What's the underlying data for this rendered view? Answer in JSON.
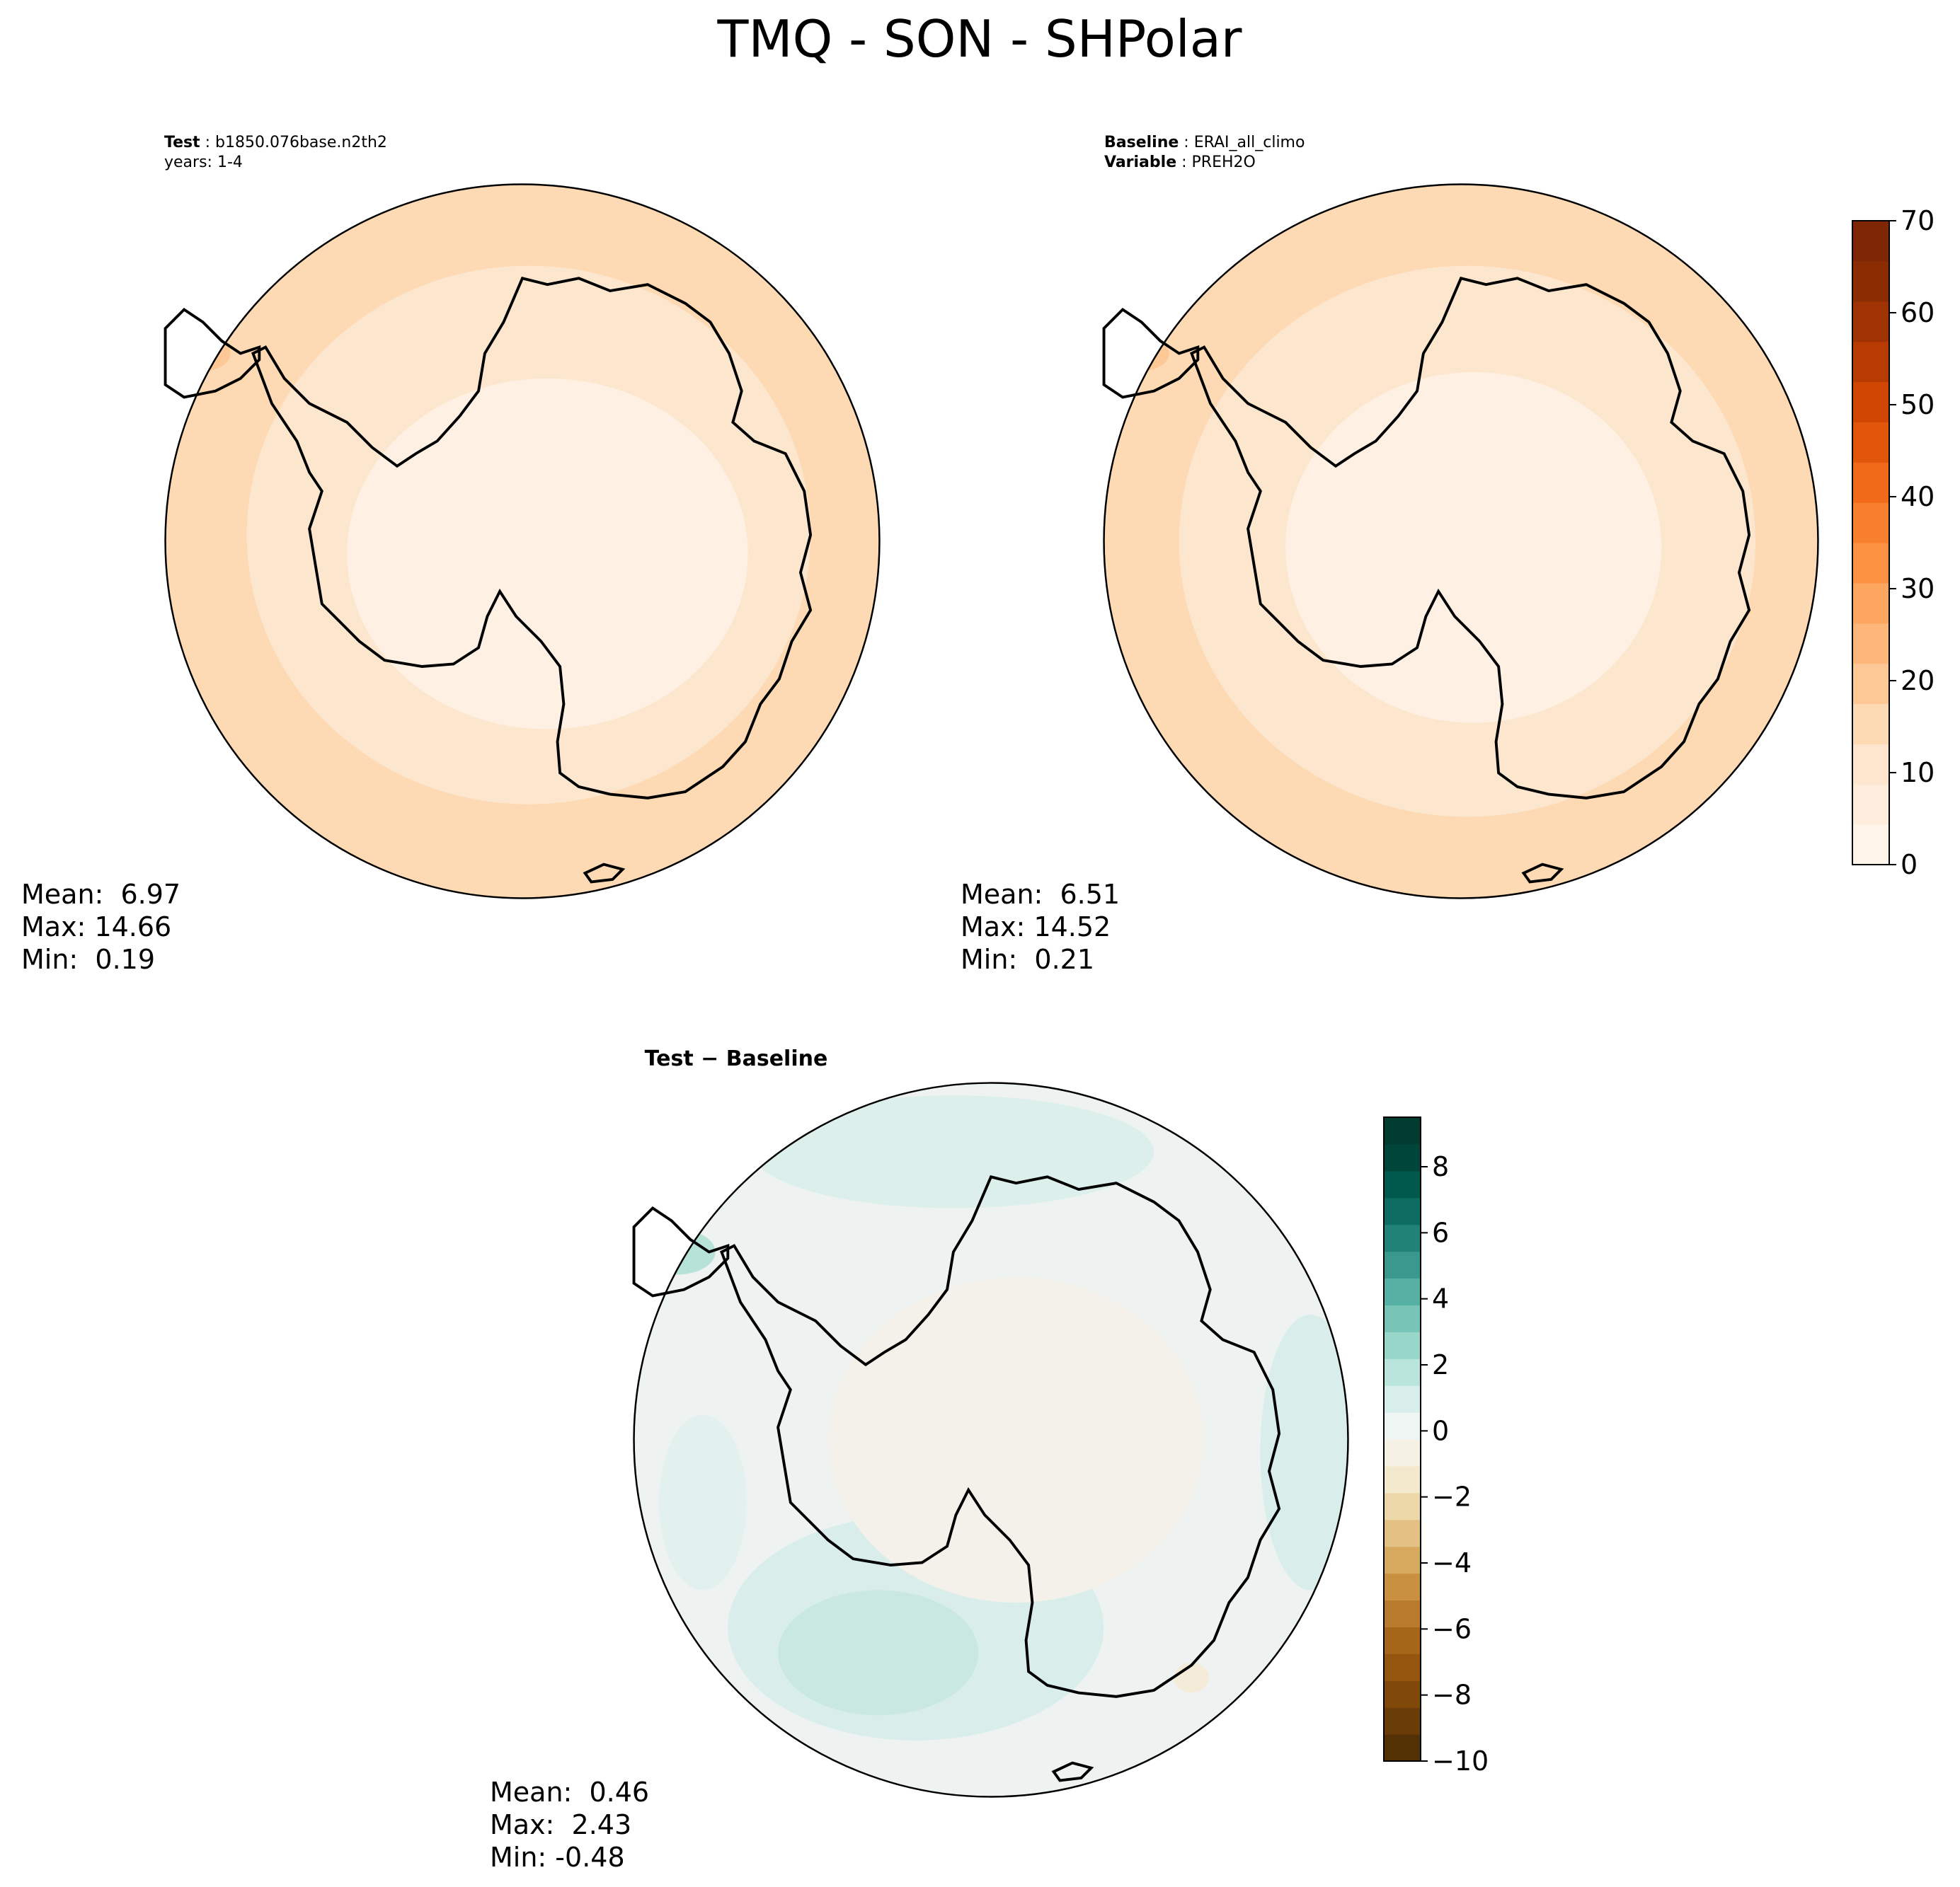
{
  "title": "TMQ - SON - SHPolar",
  "panels": {
    "test": {
      "label_bold": "Test",
      "label_text": " : b1850.076base.n2th2",
      "line2": "years: 1-4",
      "stats": [
        "Mean:  6.97",
        "Max: 14.66",
        "Min:  0.19"
      ]
    },
    "baseline": {
      "label_bold": "Baseline",
      "label_text": " : ERAI_all_climo",
      "var_bold": "Variable",
      "var_text": " : PREH2O",
      "stats": [
        "Mean:  6.51",
        "Max: 14.52",
        "Min:  0.21"
      ]
    },
    "diff": {
      "title": "Test − Baseline",
      "stats": [
        "Mean:  0.46",
        "Max:  2.43",
        "Min: -0.48"
      ]
    }
  },
  "chart_data": [
    {
      "type": "heatmap",
      "name": "test",
      "projection": "south-polar stereographic",
      "colormap": "Oranges",
      "field_levels_outer_to_inner": [
        12.5,
        7.5,
        2.5
      ],
      "stats": {
        "mean": 6.97,
        "max": 14.66,
        "min": 0.19
      }
    },
    {
      "type": "heatmap",
      "name": "baseline",
      "projection": "south-polar stereographic",
      "colormap": "Oranges",
      "field_levels_outer_to_inner": [
        12.5,
        7.5,
        2.5
      ],
      "stats": {
        "mean": 6.51,
        "max": 14.52,
        "min": 0.21
      },
      "colorbar": {
        "range": [
          0,
          70
        ],
        "ticks": [
          0,
          10,
          20,
          30,
          40,
          50,
          60,
          70
        ],
        "tick_labels": [
          "0",
          "10",
          "20",
          "30",
          "40",
          "50",
          "60",
          "70"
        ],
        "colors": [
          "#fff5eb",
          "#feeddc",
          "#fee6ce",
          "#fdd9b4",
          "#fdc895",
          "#fdb77a",
          "#fda660",
          "#fd9243",
          "#f77f2e",
          "#f06a1a",
          "#e25609",
          "#d24603",
          "#b83c02",
          "#9f3303",
          "#8b2c03",
          "#7f2704"
        ]
      }
    },
    {
      "type": "heatmap",
      "name": "difference",
      "projection": "south-polar stereographic",
      "colormap": "BrBG",
      "stats": {
        "mean": 0.46,
        "max": 2.43,
        "min": -0.48
      },
      "colorbar": {
        "range": [
          -10,
          9.5
        ],
        "ticks": [
          -10,
          -8,
          -6,
          -4,
          -2,
          0,
          2,
          4,
          6,
          8
        ],
        "tick_labels": [
          "−10",
          "−8",
          "−6",
          "−4",
          "−2",
          "0",
          "2",
          "4",
          "6",
          "8"
        ],
        "colors": [
          "#543005",
          "#6a3c07",
          "#80490a",
          "#94560f",
          "#a66619",
          "#b87a2c",
          "#c9913f",
          "#d7a95e",
          "#e3c184",
          "#ecd7a9",
          "#f3e9cc",
          "#f5f1e4",
          "#eef5f3",
          "#d8eeea",
          "#bae5dd",
          "#99d6ca",
          "#78c5b8",
          "#57b0a4",
          "#3a998d",
          "#218277",
          "#0d6d62",
          "#00594d",
          "#004539",
          "#003c30"
        ]
      }
    }
  ]
}
